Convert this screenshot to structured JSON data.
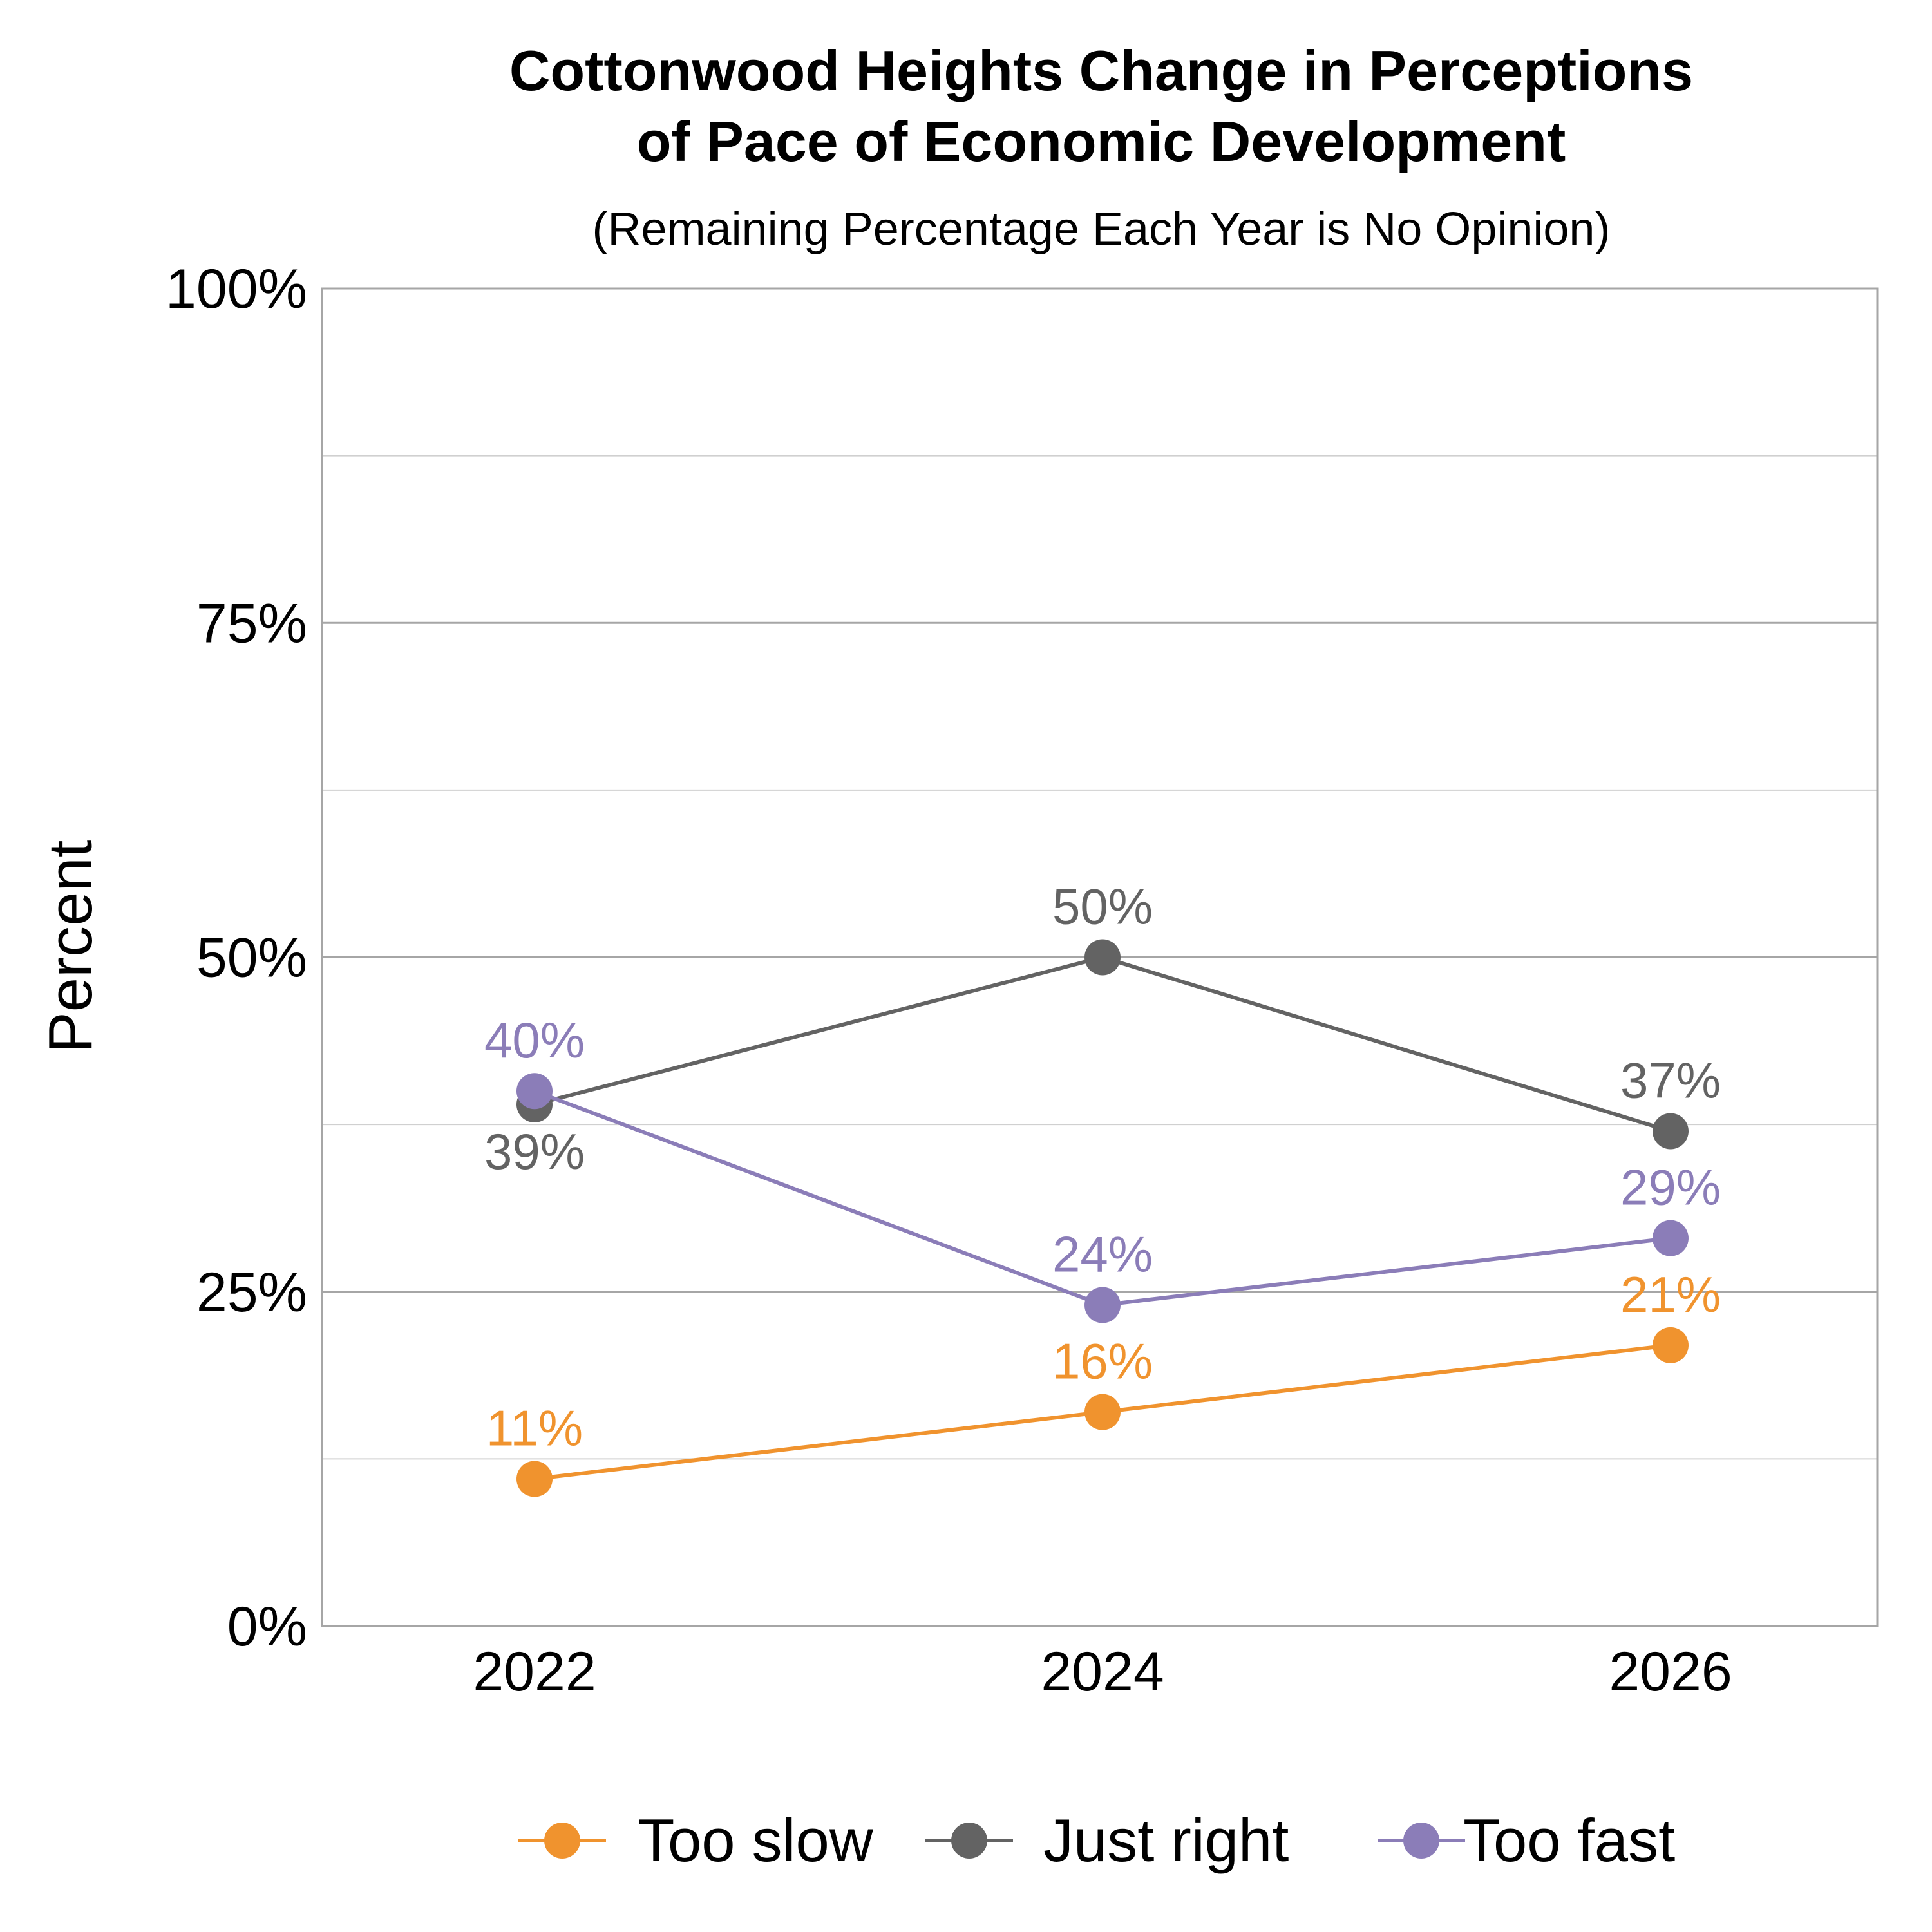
{
  "chart_data": {
    "type": "line",
    "title_line1": "Cottonwood Heights Change in Perceptions",
    "title_line2": "of Pace of Economic Development",
    "subtitle": "(Remaining Percentage Each Year is No Opinion)",
    "ylabel": "Percent",
    "xlabel": "",
    "x": [
      "2022",
      "2024",
      "2026"
    ],
    "ylim": [
      0,
      100
    ],
    "y_ticks": [
      0,
      25,
      50,
      75,
      100
    ],
    "y_tick_labels": [
      "0%",
      "25%",
      "50%",
      "75%",
      "100%"
    ],
    "minor_grid": [
      12.5,
      37.5,
      62.5,
      87.5
    ],
    "grid": true,
    "legend_position": "bottom",
    "series": [
      {
        "name": "Too slow",
        "values": [
          11,
          16,
          21
        ],
        "labels": [
          "11%",
          "16%",
          "21%"
        ],
        "color": "#F0932E",
        "label_pos": [
          "above",
          "above",
          "above"
        ]
      },
      {
        "name": "Just right",
        "values": [
          39,
          50,
          37
        ],
        "labels": [
          "39%",
          "50%",
          "37%"
        ],
        "color": "#636363",
        "label_pos": [
          "below",
          "above",
          "above"
        ]
      },
      {
        "name": "Too fast",
        "values": [
          40,
          24,
          29
        ],
        "labels": [
          "40%",
          "24%",
          "29%"
        ],
        "color": "#8B7DB8",
        "label_pos": [
          "above",
          "above",
          "above"
        ]
      }
    ]
  }
}
